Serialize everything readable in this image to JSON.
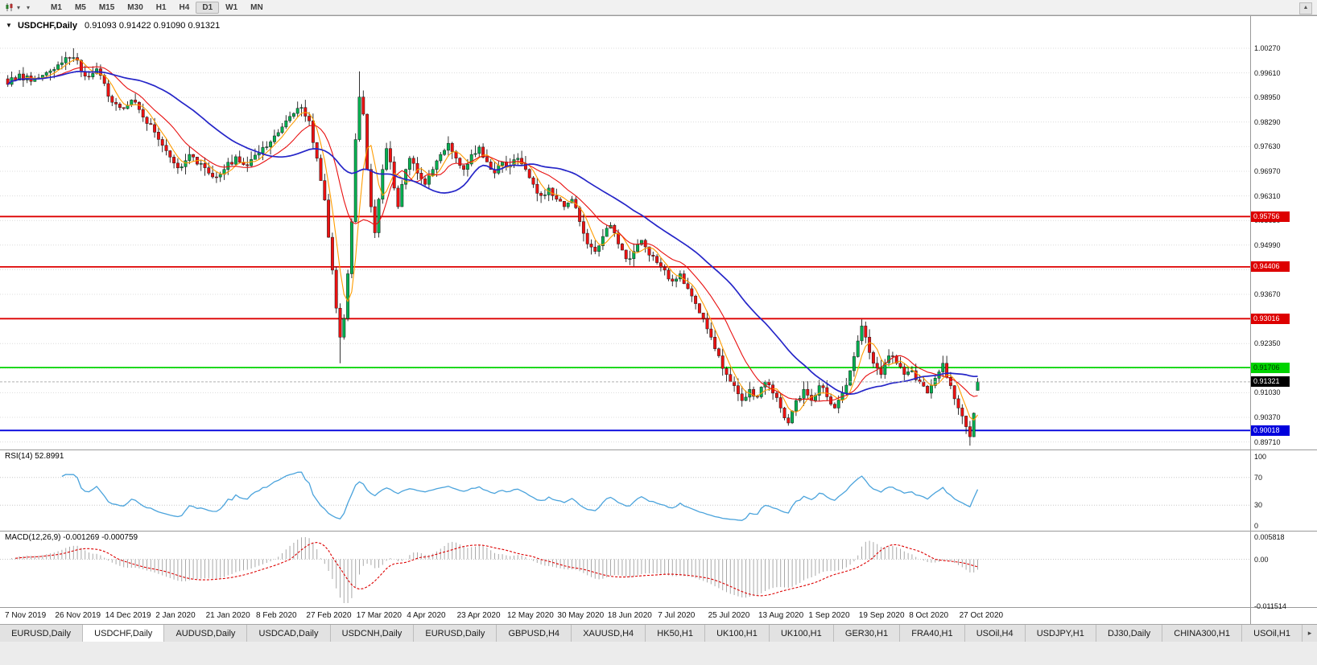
{
  "icons": {
    "chart_dropdown": "▼",
    "caret_down": "▾",
    "toolbar_scroll": "▲",
    "tab_scroll_right": "▸"
  },
  "toolbar": {
    "timeframes": [
      "M1",
      "M5",
      "M15",
      "M30",
      "H1",
      "H4",
      "D1",
      "W1",
      "MN"
    ],
    "active_timeframe": "D1"
  },
  "chart": {
    "symbol": "USDCHF,Daily",
    "ohlc_text": "0.91093 0.91422 0.91090 0.91321",
    "y_axis_labels": [
      "1.00270",
      "0.99610",
      "0.98950",
      "0.98290",
      "0.97630",
      "0.96970",
      "0.96310",
      "0.95650",
      "0.94990",
      "0.94330",
      "0.93670",
      "0.93010",
      "0.92350",
      "0.91690",
      "0.91030",
      "0.90370",
      "0.89710"
    ],
    "x_axis_labels": [
      "7 Nov 2019",
      "26 Nov 2019",
      "14 Dec 2019",
      "2 Jan 2020",
      "21 Jan 2020",
      "8 Feb 2020",
      "27 Feb 2020",
      "17 Mar 2020",
      "4 Apr 2020",
      "23 Apr 2020",
      "12 May 2020",
      "30 May 2020",
      "18 Jun 2020",
      "7 Jul 2020",
      "25 Jul 2020",
      "13 Aug 2020",
      "1 Sep 2020",
      "19 Sep 2020",
      "8 Oct 2020",
      "27 Oct 2020"
    ],
    "levels": [
      {
        "price": 0.95756,
        "label": "0.95756",
        "color": "#dd0000",
        "text_color": "#ffffff"
      },
      {
        "price": 0.94406,
        "label": "0.94406",
        "color": "#dd0000",
        "text_color": "#ffffff"
      },
      {
        "price": 0.93016,
        "label": "0.93016",
        "color": "#dd0000",
        "text_color": "#ffffff"
      },
      {
        "price": 0.91706,
        "label": "0.91706",
        "color": "#00d400",
        "text_color": "#003300"
      },
      {
        "price": 0.90018,
        "label": "0.90018",
        "color": "#0000dd",
        "text_color": "#ffffff"
      }
    ],
    "price_badge": {
      "price": 0.91321,
      "label": "0.91321",
      "color": "#000000",
      "text_color": "#ffffff"
    },
    "colors": {
      "bull": "#00b050",
      "bear": "#ee1111",
      "wick": "#1c1c1c",
      "ma_slow": "#2525c8",
      "ma_mid": "#e81010",
      "ma_fast": "#ff9c00",
      "grid": "#dcdcdc",
      "separator": "#9a9a9a"
    }
  },
  "rsi": {
    "title": "RSI(14) 52.8991",
    "period": 14,
    "value": "52.8991",
    "axis_labels": [
      "100",
      "70",
      "30",
      "0"
    ],
    "level_lines": [
      70,
      30
    ],
    "line_color": "#4aa3dc"
  },
  "macd": {
    "title": "MACD(12,26,9) -0.001269 -0.000759",
    "values": [
      "-0.001269",
      "-0.000759"
    ],
    "axis_labels": [
      "0.005818",
      "0.00",
      "-0.011514"
    ],
    "histogram_color": "#a8a8a8",
    "signal_color": "#dd0000"
  },
  "tabs": {
    "items": [
      "EURUSD,Daily",
      "USDCHF,Daily",
      "AUDUSD,Daily",
      "USDCAD,Daily",
      "USDCNH,Daily",
      "EURUSD,Daily",
      "GBPUSD,H4",
      "XAUUSD,H4",
      "HK50,H1",
      "UK100,H1",
      "UK100,H1",
      "GER30,H1",
      "FRA40,H1",
      "USOil,H4",
      "USDJPY,H1",
      "DJ30,Daily",
      "CHINA300,H1",
      "USOil,H1"
    ],
    "active_index": 1
  },
  "chart_data": {
    "type": "candlestick",
    "symbol": "USDCHF",
    "timeframe": "Daily",
    "visible_range": {
      "start": "7 Nov 2019",
      "end": "early Nov 2020"
    },
    "y_max": 1.0027,
    "y_min": 0.8961,
    "num_candles": 252,
    "support_resistance": [
      0.95756,
      0.94406,
      0.93016,
      0.91706,
      0.90018
    ],
    "current_price": 0.91321,
    "last_ohlc": {
      "open": 0.91093,
      "high": 0.91422,
      "low": 0.9109,
      "close": 0.91321
    },
    "close_anchors": [
      [
        0,
        0.993
      ],
      [
        3,
        0.9958
      ],
      [
        6,
        0.9938
      ],
      [
        10,
        0.9962
      ],
      [
        14,
        0.9988
      ],
      [
        17,
        1.0002
      ],
      [
        20,
        0.9952
      ],
      [
        23,
        0.9972
      ],
      [
        26,
        0.9898
      ],
      [
        29,
        0.9868
      ],
      [
        32,
        0.9888
      ],
      [
        35,
        0.9842
      ],
      [
        38,
        0.9802
      ],
      [
        41,
        0.9752
      ],
      [
        44,
        0.9706
      ],
      [
        47,
        0.9742
      ],
      [
        50,
        0.9718
      ],
      [
        53,
        0.9682
      ],
      [
        56,
        0.9702
      ],
      [
        59,
        0.9736
      ],
      [
        62,
        0.9712
      ],
      [
        65,
        0.9746
      ],
      [
        68,
        0.9776
      ],
      [
        71,
        0.9816
      ],
      [
        74,
        0.9852
      ],
      [
        76,
        0.9868
      ],
      [
        78,
        0.9832
      ],
      [
        80,
        0.9732
      ],
      [
        82,
        0.962
      ],
      [
        83,
        0.952
      ],
      [
        84,
        0.9432
      ],
      [
        85,
        0.933
      ],
      [
        86,
        0.9252
      ],
      [
        87,
        0.9302
      ],
      [
        88,
        0.9422
      ],
      [
        89,
        0.9562
      ],
      [
        90,
        0.9782
      ],
      [
        91,
        0.9896
      ],
      [
        92,
        0.985
      ],
      [
        93,
        0.9702
      ],
      [
        94,
        0.9602
      ],
      [
        95,
        0.9532
      ],
      [
        96,
        0.9622
      ],
      [
        97,
        0.9702
      ],
      [
        98,
        0.9758
      ],
      [
        99,
        0.9722
      ],
      [
        100,
        0.9652
      ],
      [
        101,
        0.9602
      ],
      [
        102,
        0.9662
      ],
      [
        103,
        0.9702
      ],
      [
        104,
        0.9732
      ],
      [
        106,
        0.9692
      ],
      [
        108,
        0.9662
      ],
      [
        110,
        0.9702
      ],
      [
        112,
        0.9742
      ],
      [
        114,
        0.9772
      ],
      [
        116,
        0.9732
      ],
      [
        118,
        0.9702
      ],
      [
        120,
        0.9742
      ],
      [
        122,
        0.9762
      ],
      [
        124,
        0.9722
      ],
      [
        126,
        0.9692
      ],
      [
        128,
        0.9722
      ],
      [
        130,
        0.9712
      ],
      [
        132,
        0.9732
      ],
      [
        134,
        0.9702
      ],
      [
        136,
        0.9662
      ],
      [
        138,
        0.9632
      ],
      [
        140,
        0.9652
      ],
      [
        142,
        0.9622
      ],
      [
        144,
        0.9602
      ],
      [
        146,
        0.9622
      ],
      [
        148,
        0.9562
      ],
      [
        150,
        0.9502
      ],
      [
        152,
        0.9482
      ],
      [
        154,
        0.9522
      ],
      [
        156,
        0.9552
      ],
      [
        158,
        0.9502
      ],
      [
        160,
        0.9462
      ],
      [
        162,
        0.9482
      ],
      [
        164,
        0.9512
      ],
      [
        166,
        0.9472
      ],
      [
        168,
        0.9452
      ],
      [
        170,
        0.9432
      ],
      [
        172,
        0.9402
      ],
      [
        174,
        0.9422
      ],
      [
        176,
        0.9382
      ],
      [
        178,
        0.9342
      ],
      [
        180,
        0.9302
      ],
      [
        182,
        0.9252
      ],
      [
        184,
        0.9202
      ],
      [
        186,
        0.9152
      ],
      [
        188,
        0.9122
      ],
      [
        190,
        0.9082
      ],
      [
        192,
        0.9112
      ],
      [
        194,
        0.9092
      ],
      [
        196,
        0.9132
      ],
      [
        198,
        0.9102
      ],
      [
        200,
        0.9062
      ],
      [
        202,
        0.9022
      ],
      [
        204,
        0.9082
      ],
      [
        206,
        0.9112
      ],
      [
        208,
        0.9082
      ],
      [
        210,
        0.9122
      ],
      [
        212,
        0.9092
      ],
      [
        214,
        0.9062
      ],
      [
        216,
        0.9102
      ],
      [
        218,
        0.9162
      ],
      [
        220,
        0.9242
      ],
      [
        221,
        0.9282
      ],
      [
        222,
        0.9252
      ],
      [
        224,
        0.9182
      ],
      [
        226,
        0.9152
      ],
      [
        228,
        0.9202
      ],
      [
        230,
        0.9182
      ],
      [
        232,
        0.9152
      ],
      [
        234,
        0.9162
      ],
      [
        236,
        0.9132
      ],
      [
        238,
        0.9102
      ],
      [
        240,
        0.9142
      ],
      [
        242,
        0.9182
      ],
      [
        244,
        0.9122
      ],
      [
        246,
        0.9062
      ],
      [
        248,
        0.9012
      ],
      [
        249,
        0.8985
      ],
      [
        250,
        0.9048
      ],
      [
        251,
        0.91321
      ]
    ],
    "wick_overrides": {
      "17": {
        "high": 1.0027
      },
      "44": {
        "low": 0.969
      },
      "86": {
        "low": 0.9182
      },
      "91": {
        "high": 0.9965
      },
      "95": {
        "low": 0.9518
      },
      "221": {
        "high": 0.93
      },
      "249": {
        "low": 0.8961
      }
    }
  }
}
